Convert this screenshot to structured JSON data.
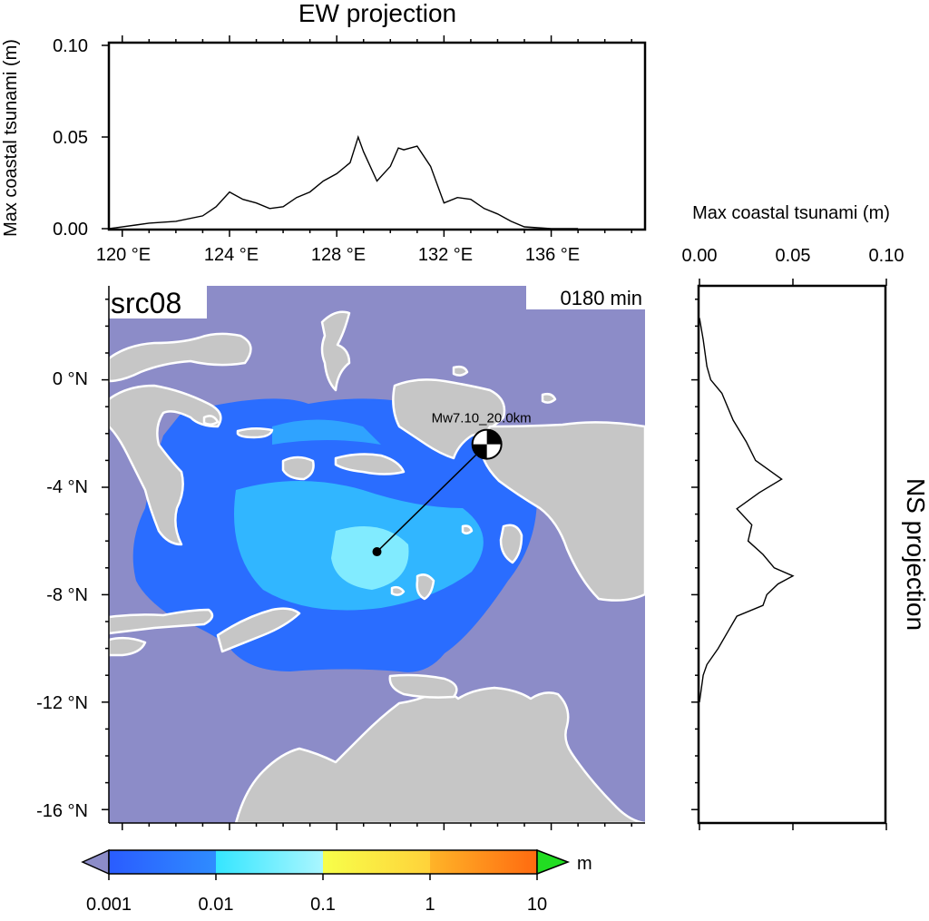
{
  "ew_panel": {
    "title": "EW projection",
    "ylabel": "Max coastal tsunami (m)",
    "yticks": [
      "0.10",
      "0.05",
      "0.00"
    ],
    "xticks": [
      "120 °E",
      "124 °E",
      "128 °E",
      "132 °E",
      "136 °E"
    ]
  },
  "ns_panel": {
    "title": "NS projection",
    "xlabel": "Max coastal tsunami (m)",
    "xticks": [
      "0.00",
      "0.05",
      "0.10"
    ]
  },
  "map": {
    "scenario_label": "src08",
    "time_label": "0180 min",
    "event_label": "Mw7.10_20.0km",
    "lat_ticks": [
      "0 °N",
      "-4 °N",
      "-8 °N",
      "-12 °N",
      "-16 °N"
    ],
    "lon_range": [
      119.5,
      139.5
    ],
    "lat_range": [
      -16.5,
      3.5
    ],
    "epicenter": {
      "lon": 129.5,
      "lat": -6.4
    },
    "mechanism_marker": {
      "lon": 133.6,
      "lat": -2.4
    }
  },
  "colors": {
    "ocean": "#8c8cc8",
    "land": "#c6c6c6",
    "coast": "#ffffff",
    "wave_low": "#2a6dff",
    "wave_mid": "#33c8ff",
    "wave_high": "#8ff5ff"
  },
  "colorbar": {
    "unit": "m",
    "tick_labels": [
      "0.001",
      "0.01",
      "0.1",
      "1",
      "10"
    ]
  },
  "chart_data": [
    {
      "type": "line",
      "title": "EW projection",
      "ylabel": "Max coastal tsunami (m)",
      "xlabel": "",
      "ylim": [
        0,
        0.1
      ],
      "xlim": [
        119.5,
        139.5
      ],
      "x": [
        119.5,
        120.5,
        121,
        122,
        123,
        123.5,
        124,
        124.5,
        125,
        125.5,
        126,
        126.5,
        127,
        127.5,
        128,
        128.5,
        128.8,
        129,
        129.5,
        130,
        130.3,
        130.5,
        131,
        131.5,
        132,
        132.5,
        133,
        133.5,
        134,
        134.5,
        135,
        136,
        137
      ],
      "series": [
        {
          "values": [
            0,
            0.002,
            0.003,
            0.004,
            0.007,
            0.012,
            0.02,
            0.016,
            0.014,
            0.011,
            0.012,
            0.017,
            0.02,
            0.026,
            0.03,
            0.036,
            0.05,
            0.042,
            0.026,
            0.034,
            0.044,
            0.043,
            0.045,
            0.034,
            0.014,
            0.017,
            0.016,
            0.011,
            0.008,
            0.004,
            0.001,
            0.0,
            0.0
          ]
        }
      ]
    },
    {
      "type": "line",
      "title": "NS projection",
      "xlabel": "Max coastal tsunami (m)",
      "xlim": [
        0,
        0.1
      ],
      "ylim": [
        -16.5,
        3.5
      ],
      "y": [
        2.3,
        1.5,
        0.5,
        0,
        -0.5,
        -1.5,
        -2.3,
        -3,
        -3.7,
        -4.2,
        -4.8,
        -5.4,
        -6,
        -6.5,
        -7,
        -7.3,
        -7.6,
        -8,
        -8.4,
        -8.8,
        -9.4,
        -10,
        -10.6,
        -11,
        -12
      ],
      "series": [
        {
          "values": [
            0.0,
            0.002,
            0.004,
            0.006,
            0.012,
            0.018,
            0.025,
            0.03,
            0.044,
            0.032,
            0.02,
            0.028,
            0.026,
            0.034,
            0.04,
            0.05,
            0.042,
            0.036,
            0.034,
            0.02,
            0.015,
            0.01,
            0.004,
            0.002,
            0.0
          ]
        }
      ]
    }
  ]
}
